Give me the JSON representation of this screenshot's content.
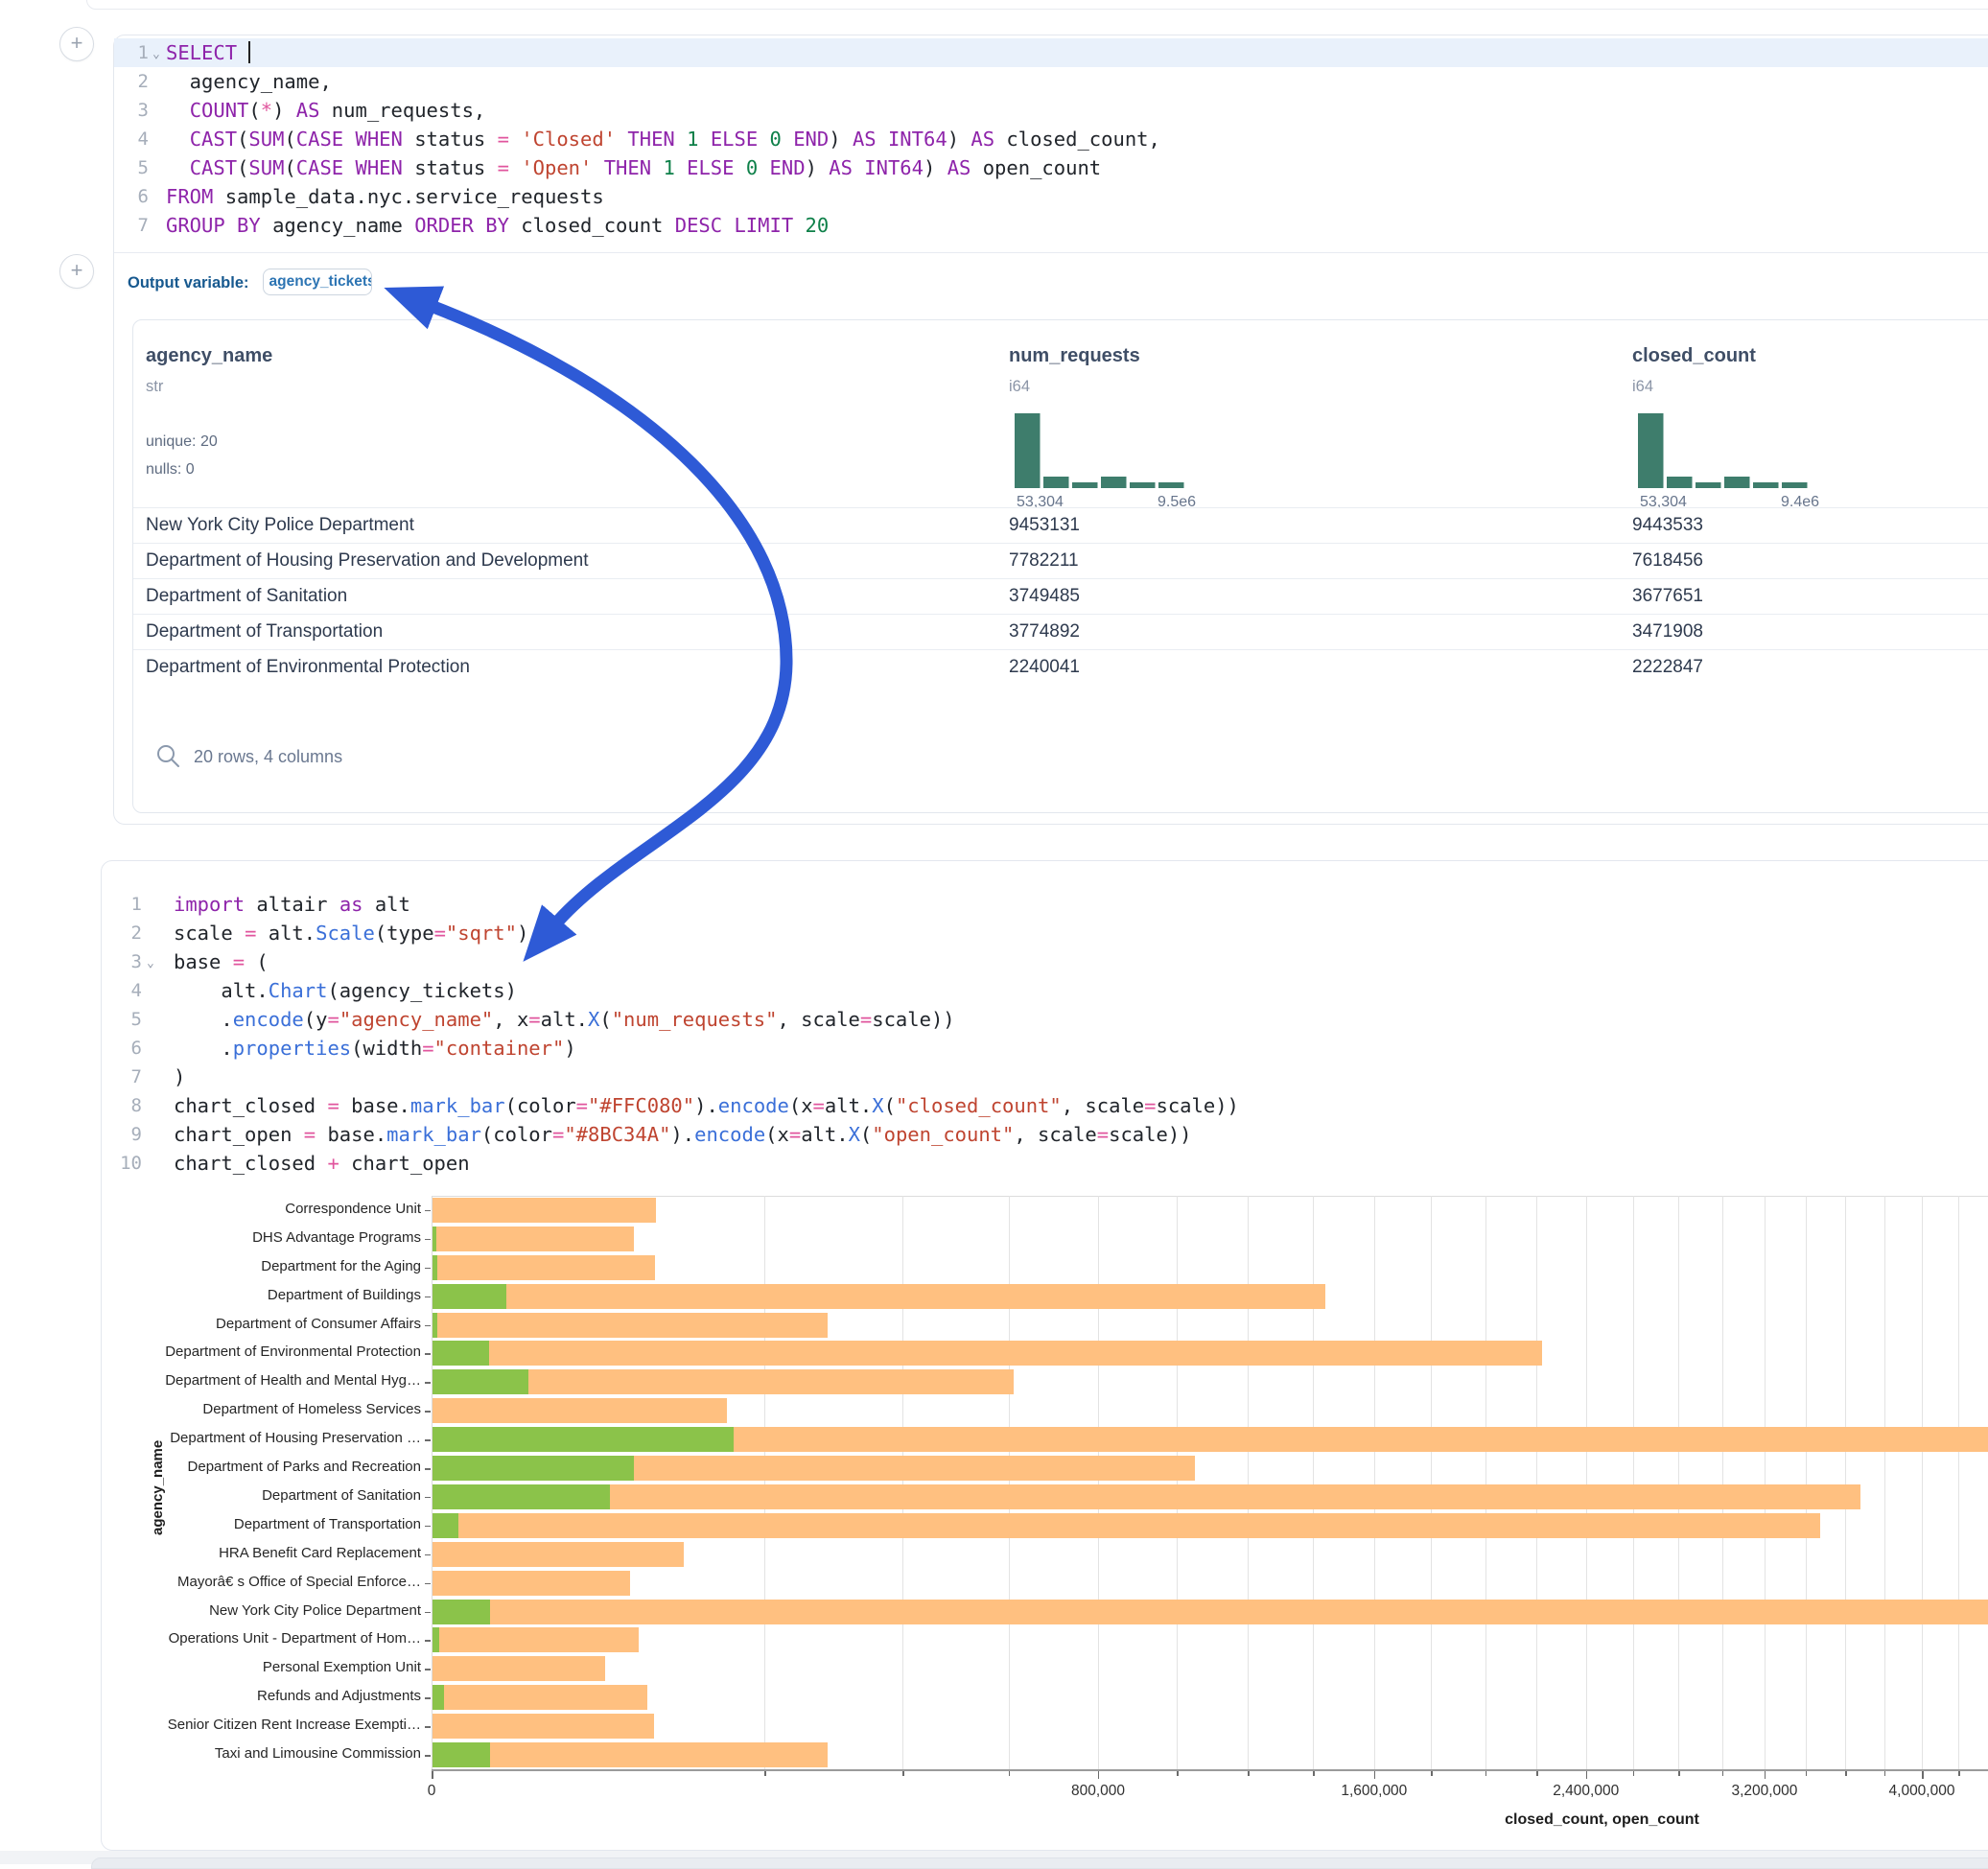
{
  "ui": {
    "plus": "+"
  },
  "cells": {
    "sql": {
      "output_label": "Output variable:",
      "output_variable": "agency_tickets",
      "lines": [
        {
          "no": "1",
          "fold": true,
          "active": true,
          "caret": true,
          "tokens": [
            [
              "SELECT ",
              "k"
            ]
          ]
        },
        {
          "no": "2",
          "tokens": [
            [
              "  agency_name,",
              "d"
            ]
          ]
        },
        {
          "no": "3",
          "tokens": [
            [
              "  ",
              "d"
            ],
            [
              "COUNT",
              "k"
            ],
            [
              "(",
              "d"
            ],
            [
              "*",
              "o"
            ],
            [
              ") ",
              "d"
            ],
            [
              "AS",
              "k"
            ],
            [
              " num_requests,",
              "d"
            ]
          ]
        },
        {
          "no": "4",
          "tokens": [
            [
              "  ",
              "d"
            ],
            [
              "CAST",
              "k"
            ],
            [
              "(",
              "d"
            ],
            [
              "SUM",
              "k"
            ],
            [
              "(",
              "d"
            ],
            [
              "CASE",
              "k"
            ],
            [
              " ",
              "d"
            ],
            [
              "WHEN",
              "k"
            ],
            [
              " status ",
              "d"
            ],
            [
              "=",
              "o"
            ],
            [
              " ",
              "d"
            ],
            [
              "'Closed'",
              "s"
            ],
            [
              " ",
              "d"
            ],
            [
              "THEN",
              "k"
            ],
            [
              " ",
              "d"
            ],
            [
              "1",
              "n"
            ],
            [
              " ",
              "d"
            ],
            [
              "ELSE",
              "k"
            ],
            [
              " ",
              "d"
            ],
            [
              "0",
              "n"
            ],
            [
              " ",
              "d"
            ],
            [
              "END",
              "k"
            ],
            [
              ") ",
              "d"
            ],
            [
              "AS",
              "k"
            ],
            [
              " ",
              "d"
            ],
            [
              "INT64",
              "k"
            ],
            [
              ") ",
              "d"
            ],
            [
              "AS",
              "k"
            ],
            [
              " closed_count,",
              "d"
            ]
          ]
        },
        {
          "no": "5",
          "tokens": [
            [
              "  ",
              "d"
            ],
            [
              "CAST",
              "k"
            ],
            [
              "(",
              "d"
            ],
            [
              "SUM",
              "k"
            ],
            [
              "(",
              "d"
            ],
            [
              "CASE",
              "k"
            ],
            [
              " ",
              "d"
            ],
            [
              "WHEN",
              "k"
            ],
            [
              " status ",
              "d"
            ],
            [
              "=",
              "o"
            ],
            [
              " ",
              "d"
            ],
            [
              "'Open'",
              "s"
            ],
            [
              " ",
              "d"
            ],
            [
              "THEN",
              "k"
            ],
            [
              " ",
              "d"
            ],
            [
              "1",
              "n"
            ],
            [
              " ",
              "d"
            ],
            [
              "ELSE",
              "k"
            ],
            [
              " ",
              "d"
            ],
            [
              "0",
              "n"
            ],
            [
              " ",
              "d"
            ],
            [
              "END",
              "k"
            ],
            [
              ") ",
              "d"
            ],
            [
              "AS",
              "k"
            ],
            [
              " ",
              "d"
            ],
            [
              "INT64",
              "k"
            ],
            [
              ") ",
              "d"
            ],
            [
              "AS",
              "k"
            ],
            [
              " open_count",
              "d"
            ]
          ]
        },
        {
          "no": "6",
          "tokens": [
            [
              "FROM",
              "k"
            ],
            [
              " sample_data.nyc.service_requests",
              "d"
            ]
          ]
        },
        {
          "no": "7",
          "tokens": [
            [
              "GROUP BY",
              "k"
            ],
            [
              " agency_name ",
              "d"
            ],
            [
              "ORDER BY",
              "k"
            ],
            [
              " closed_count ",
              "d"
            ],
            [
              "DESC",
              "k"
            ],
            [
              " ",
              "d"
            ],
            [
              "LIMIT",
              "k"
            ],
            [
              " ",
              "d"
            ],
            [
              "20",
              "n"
            ]
          ]
        }
      ]
    },
    "python": {
      "lines": [
        {
          "no": "1",
          "tokens": [
            [
              "import",
              "k"
            ],
            [
              " altair ",
              "d"
            ],
            [
              "as",
              "k"
            ],
            [
              " alt",
              "d"
            ]
          ]
        },
        {
          "no": "2",
          "tokens": [
            [
              "scale ",
              "d"
            ],
            [
              "=",
              "o"
            ],
            [
              " alt.",
              "d"
            ],
            [
              "Scale",
              "f"
            ],
            [
              "(type",
              "d"
            ],
            [
              "=",
              "o"
            ],
            [
              "\"sqrt\"",
              "s"
            ],
            [
              ")",
              "d"
            ]
          ]
        },
        {
          "no": "3",
          "fold": true,
          "tokens": [
            [
              "base ",
              "d"
            ],
            [
              "=",
              "o"
            ],
            [
              " (",
              "d"
            ]
          ]
        },
        {
          "no": "4",
          "tokens": [
            [
              "    alt.",
              "d"
            ],
            [
              "Chart",
              "f"
            ],
            [
              "(agency_tickets)",
              "d"
            ]
          ]
        },
        {
          "no": "5",
          "tokens": [
            [
              "    .",
              "d"
            ],
            [
              "encode",
              "f"
            ],
            [
              "(y",
              "d"
            ],
            [
              "=",
              "o"
            ],
            [
              "\"agency_name\"",
              "s"
            ],
            [
              ", x",
              "d"
            ],
            [
              "=",
              "o"
            ],
            [
              "alt.",
              "d"
            ],
            [
              "X",
              "f"
            ],
            [
              "(",
              "d"
            ],
            [
              "\"num_requests\"",
              "s"
            ],
            [
              ", scale",
              "d"
            ],
            [
              "=",
              "o"
            ],
            [
              "scale))",
              "d"
            ]
          ]
        },
        {
          "no": "6",
          "tokens": [
            [
              "    .",
              "d"
            ],
            [
              "properties",
              "f"
            ],
            [
              "(width",
              "d"
            ],
            [
              "=",
              "o"
            ],
            [
              "\"container\"",
              "s"
            ],
            [
              ")",
              "d"
            ]
          ]
        },
        {
          "no": "7",
          "tokens": [
            [
              ")",
              "d"
            ]
          ]
        },
        {
          "no": "8",
          "tokens": [
            [
              "chart_closed ",
              "d"
            ],
            [
              "=",
              "o"
            ],
            [
              " base.",
              "d"
            ],
            [
              "mark_bar",
              "f"
            ],
            [
              "(color",
              "d"
            ],
            [
              "=",
              "o"
            ],
            [
              "\"#FFC080\"",
              "s"
            ],
            [
              ").",
              "d"
            ],
            [
              "encode",
              "f"
            ],
            [
              "(x",
              "d"
            ],
            [
              "=",
              "o"
            ],
            [
              "alt.",
              "d"
            ],
            [
              "X",
              "f"
            ],
            [
              "(",
              "d"
            ],
            [
              "\"closed_count\"",
              "s"
            ],
            [
              ", scale",
              "d"
            ],
            [
              "=",
              "o"
            ],
            [
              "scale))",
              "d"
            ]
          ]
        },
        {
          "no": "9",
          "tokens": [
            [
              "chart_open ",
              "d"
            ],
            [
              "=",
              "o"
            ],
            [
              " base.",
              "d"
            ],
            [
              "mark_bar",
              "f"
            ],
            [
              "(color",
              "d"
            ],
            [
              "=",
              "o"
            ],
            [
              "\"#8BC34A\"",
              "s"
            ],
            [
              ").",
              "d"
            ],
            [
              "encode",
              "f"
            ],
            [
              "(x",
              "d"
            ],
            [
              "=",
              "o"
            ],
            [
              "alt.",
              "d"
            ],
            [
              "X",
              "f"
            ],
            [
              "(",
              "d"
            ],
            [
              "\"open_count\"",
              "s"
            ],
            [
              ", scale",
              "d"
            ],
            [
              "=",
              "o"
            ],
            [
              "scale))",
              "d"
            ]
          ]
        },
        {
          "no": "10",
          "tokens": [
            [
              "chart_closed ",
              "d"
            ],
            [
              "+",
              "o"
            ],
            [
              " chart_open",
              "d"
            ]
          ]
        }
      ]
    }
  },
  "table": {
    "columns": [
      {
        "name": "agency_name",
        "type": "str",
        "stats": [
          "unique: 20",
          "nulls: 0"
        ]
      },
      {
        "name": "num_requests",
        "type": "i64",
        "hist": {
          "counts": [
            13,
            2,
            1,
            2,
            1,
            1
          ],
          "min_label": "53,304",
          "max_label": "9.5e6"
        }
      },
      {
        "name": "closed_count",
        "type": "i64",
        "hist": {
          "counts": [
            13,
            2,
            1,
            2,
            1,
            1
          ],
          "min_label": "53,304",
          "max_label": "9.4e6"
        }
      }
    ],
    "rows": [
      [
        "New York City Police Department",
        "9453131",
        "9443533"
      ],
      [
        "Department of Housing Preservation and Development",
        "7782211",
        "7618456"
      ],
      [
        "Department of Sanitation",
        "3749485",
        "3677651"
      ],
      [
        "Department of Transportation",
        "3774892",
        "3471908"
      ],
      [
        "Department of Environmental Protection",
        "2240041",
        "2222847"
      ]
    ],
    "footer": "20 rows, 4 columns"
  },
  "chart_data": {
    "type": "bar",
    "orientation": "horizontal",
    "x_scale": "sqrt",
    "xlabel": "closed_count, open_count",
    "ylabel": "agency_name",
    "x_domain": [
      0,
      9870000
    ],
    "x_ticks": [
      0,
      800000,
      1600000,
      2400000,
      3200000,
      4000000
    ],
    "gridline_step": 200000,
    "grid": true,
    "legend": "none",
    "categories": [
      "Correspondence Unit",
      "DHS Advantage Programs",
      "Department for the Aging",
      "Department of Buildings",
      "Department of Consumer Affairs",
      "Department of Environmental Protection",
      "Department of Health and Mental Hyg…",
      "Department of Homeless Services",
      "Department of Housing Preservation …",
      "Department of Parks and Recreation",
      "Department of Sanitation",
      "Department of Transportation",
      "HRA Benefit Card Replacement",
      "Mayorâ€ s Office of Special Enforce…",
      "New York City Police Department",
      "Operations Unit - Department of Hom…",
      "Personal Exemption Unit",
      "Refunds and Adjustments",
      "Senior Citizen Rent Increase Exempti…",
      "Taxi and Limousine Commission"
    ],
    "series": [
      {
        "name": "closed_count",
        "color": "#FFC080",
        "values": [
          91000,
          74000,
          90000,
          1440000,
          282000,
          2222847,
          610000,
          157000,
          7618456,
          1050000,
          3677651,
          3471908,
          115000,
          71000,
          9443533,
          77000,
          54000,
          84000,
          89000,
          282000
        ]
      },
      {
        "name": "open_count",
        "color": "#8BC34A",
        "values": [
          0,
          50,
          60,
          10000,
          60,
          6000,
          17000,
          0,
          164000,
          74000,
          57000,
          1300,
          0,
          0,
          6200,
          100,
          0,
          300,
          0,
          6200
        ]
      }
    ]
  },
  "colors": {
    "hist_bar": "#3E7D6C",
    "arrow": "#2E5AD6",
    "closed_bar": "#FFC080",
    "open_bar": "#8BC34A"
  }
}
